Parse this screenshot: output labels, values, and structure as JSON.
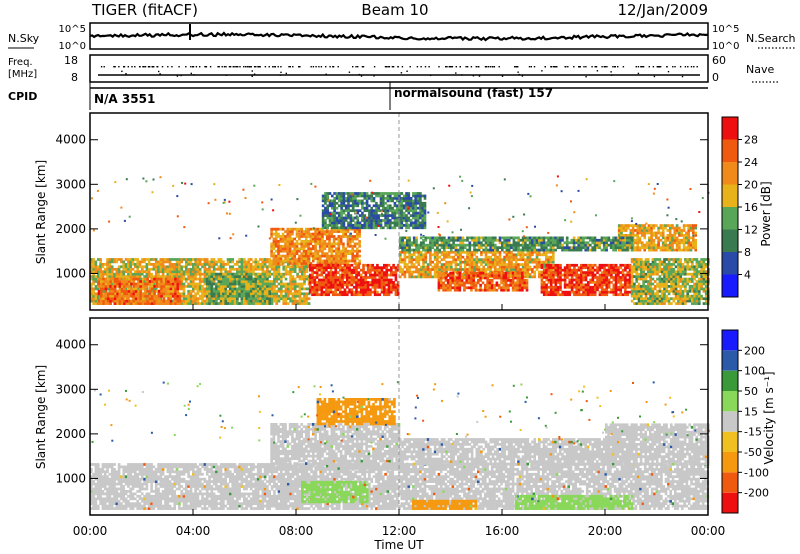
{
  "header": {
    "station": "TIGER (fitACF)",
    "beam": "Beam 10",
    "date": "12/Jan/2009"
  },
  "top_panels": {
    "nsky_label": "N.Sky",
    "nsky_ticks": [
      "10^5",
      "10^0"
    ],
    "nsearch_label": "N.Search",
    "freq_label_1": "Freq.",
    "freq_label_2": "[MHz]",
    "freq_ticks": [
      "18",
      "8"
    ],
    "nave_label": "Nave",
    "nave_ticks": [
      "60",
      "0"
    ],
    "cpid_label": "CPID",
    "cpid_1": "N/A 3551",
    "cpid_2": "normalsound (fast) 157"
  },
  "colors": {
    "power_scale": [
      "#1a1aff",
      "#2a4aa8",
      "#3a7a50",
      "#59a659",
      "#e8b21a",
      "#f08a1a",
      "#f05a10",
      "#ee1010"
    ],
    "velocity_scale": [
      "#ee1010",
      "#f05a10",
      "#f59a10",
      "#f0c020",
      "#c8c8c8",
      "#8ad85a",
      "#3a9a3a",
      "#2a5aa8",
      "#1a1aff"
    ],
    "gray": "#c0c0c0",
    "green": "#60d040"
  },
  "chart_data": [
    {
      "type": "heatmap",
      "title": "",
      "ylabel": "Slant Range [km]",
      "xlabel": "Time UT",
      "x_range": [
        "00:00",
        "00:00"
      ],
      "x_ticks": [
        "00:00",
        "04:00",
        "08:00",
        "12:00",
        "16:00",
        "20:00",
        "00:00"
      ],
      "y_range": [
        180,
        4600
      ],
      "y_ticks": [
        1000,
        2000,
        3000,
        4000
      ],
      "colorbar_label": "Power [dB]",
      "colorbar_ticks": [
        "4",
        "8",
        "12",
        "16",
        "20",
        "24",
        "28"
      ],
      "colorbar_range": [
        0,
        32
      ],
      "regions": [
        {
          "t0": 0.0,
          "t1": 8.5,
          "r0": 300,
          "r1": 1300,
          "level": 18
        },
        {
          "t0": 0.3,
          "t1": 3.5,
          "r0": 300,
          "r1": 900,
          "level": 24
        },
        {
          "t0": 4.5,
          "t1": 7.0,
          "r0": 300,
          "r1": 1000,
          "level": 14
        },
        {
          "t0": 7.0,
          "t1": 10.5,
          "r0": 1200,
          "r1": 2000,
          "level": 22
        },
        {
          "t0": 8.5,
          "t1": 12.0,
          "r0": 500,
          "r1": 1200,
          "level": 28
        },
        {
          "t0": 12.0,
          "t1": 18.0,
          "r0": 900,
          "r1": 1500,
          "level": 20
        },
        {
          "t0": 13.5,
          "t1": 17.0,
          "r0": 600,
          "r1": 1000,
          "level": 26
        },
        {
          "t0": 17.5,
          "t1": 21.0,
          "r0": 500,
          "r1": 1200,
          "level": 28
        },
        {
          "t0": 21.0,
          "t1": 24.0,
          "r0": 300,
          "r1": 1300,
          "level": 16
        },
        {
          "t0": 9.0,
          "t1": 13.0,
          "r0": 2000,
          "r1": 2800,
          "level": 10
        },
        {
          "t0": 20.5,
          "t1": 23.5,
          "r0": 1500,
          "r1": 2100,
          "level": 20
        },
        {
          "t0": 12.0,
          "t1": 21.0,
          "r0": 1500,
          "r1": 1800,
          "level": 12
        }
      ]
    },
    {
      "type": "heatmap",
      "title": "",
      "ylabel": "Slant Range [km]",
      "xlabel": "Time UT",
      "x_ticks": [
        "00:00",
        "04:00",
        "08:00",
        "12:00",
        "16:00",
        "20:00",
        "00:00"
      ],
      "y_range": [
        180,
        4600
      ],
      "y_ticks": [
        1000,
        2000,
        3000,
        4000
      ],
      "colorbar_label": "Velocity [m s⁻¹]",
      "colorbar_ticks": [
        "200",
        "100",
        "50",
        "15",
        "-15",
        "-50",
        "-100",
        "-200"
      ],
      "regions": [
        {
          "t0": 0.0,
          "t1": 24.0,
          "r0": 300,
          "r1": 1300,
          "velocity": 0
        },
        {
          "t0": 7.0,
          "t1": 12.0,
          "r0": 1200,
          "r1": 2200,
          "velocity": 0
        },
        {
          "t0": 8.2,
          "t1": 10.8,
          "r0": 450,
          "r1": 900,
          "velocity": 40
        },
        {
          "t0": 16.5,
          "t1": 21.0,
          "r0": 300,
          "r1": 600,
          "velocity": 40
        },
        {
          "t0": 12.0,
          "t1": 20.5,
          "r0": 1300,
          "r1": 1900,
          "velocity": 0
        },
        {
          "t0": 20.0,
          "t1": 24.0,
          "r0": 1300,
          "r1": 2200,
          "velocity": 0
        },
        {
          "t0": 8.8,
          "t1": 11.8,
          "r0": 2200,
          "r1": 2800,
          "velocity": -60
        },
        {
          "t0": 12.5,
          "t1": 15.0,
          "r0": 300,
          "r1": 500,
          "velocity": -60
        }
      ]
    }
  ]
}
